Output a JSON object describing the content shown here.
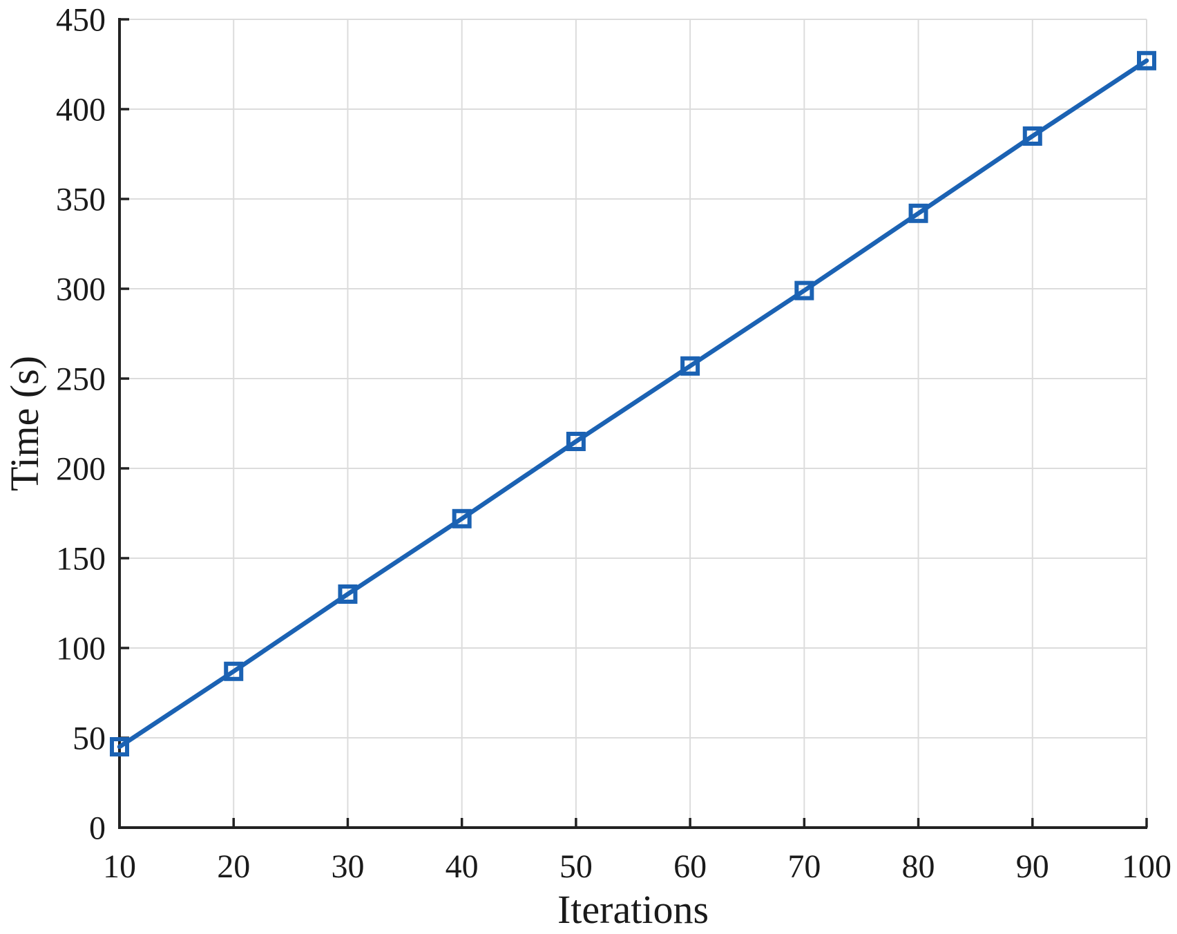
{
  "chart_data": {
    "type": "line",
    "title": "",
    "xlabel": "Iterations",
    "ylabel": "Time (s)",
    "x": [
      10,
      20,
      30,
      40,
      50,
      60,
      70,
      80,
      90,
      100
    ],
    "series": [
      {
        "name": "Time",
        "values": [
          45,
          87,
          130,
          172,
          215,
          257,
          299,
          342,
          385,
          427
        ]
      }
    ],
    "xlim": [
      10,
      100
    ],
    "ylim": [
      0,
      450
    ],
    "xticks": [
      10,
      20,
      30,
      40,
      50,
      60,
      70,
      80,
      90,
      100
    ],
    "yticks": [
      0,
      50,
      100,
      150,
      200,
      250,
      300,
      350,
      400,
      450
    ],
    "grid": true,
    "legend": false,
    "marker": "open-square",
    "colors": {
      "line": "#1b62b3",
      "grid": "#dcdcdc",
      "axis": "#222222",
      "text": "#1a1a1a",
      "background": "#ffffff"
    }
  }
}
